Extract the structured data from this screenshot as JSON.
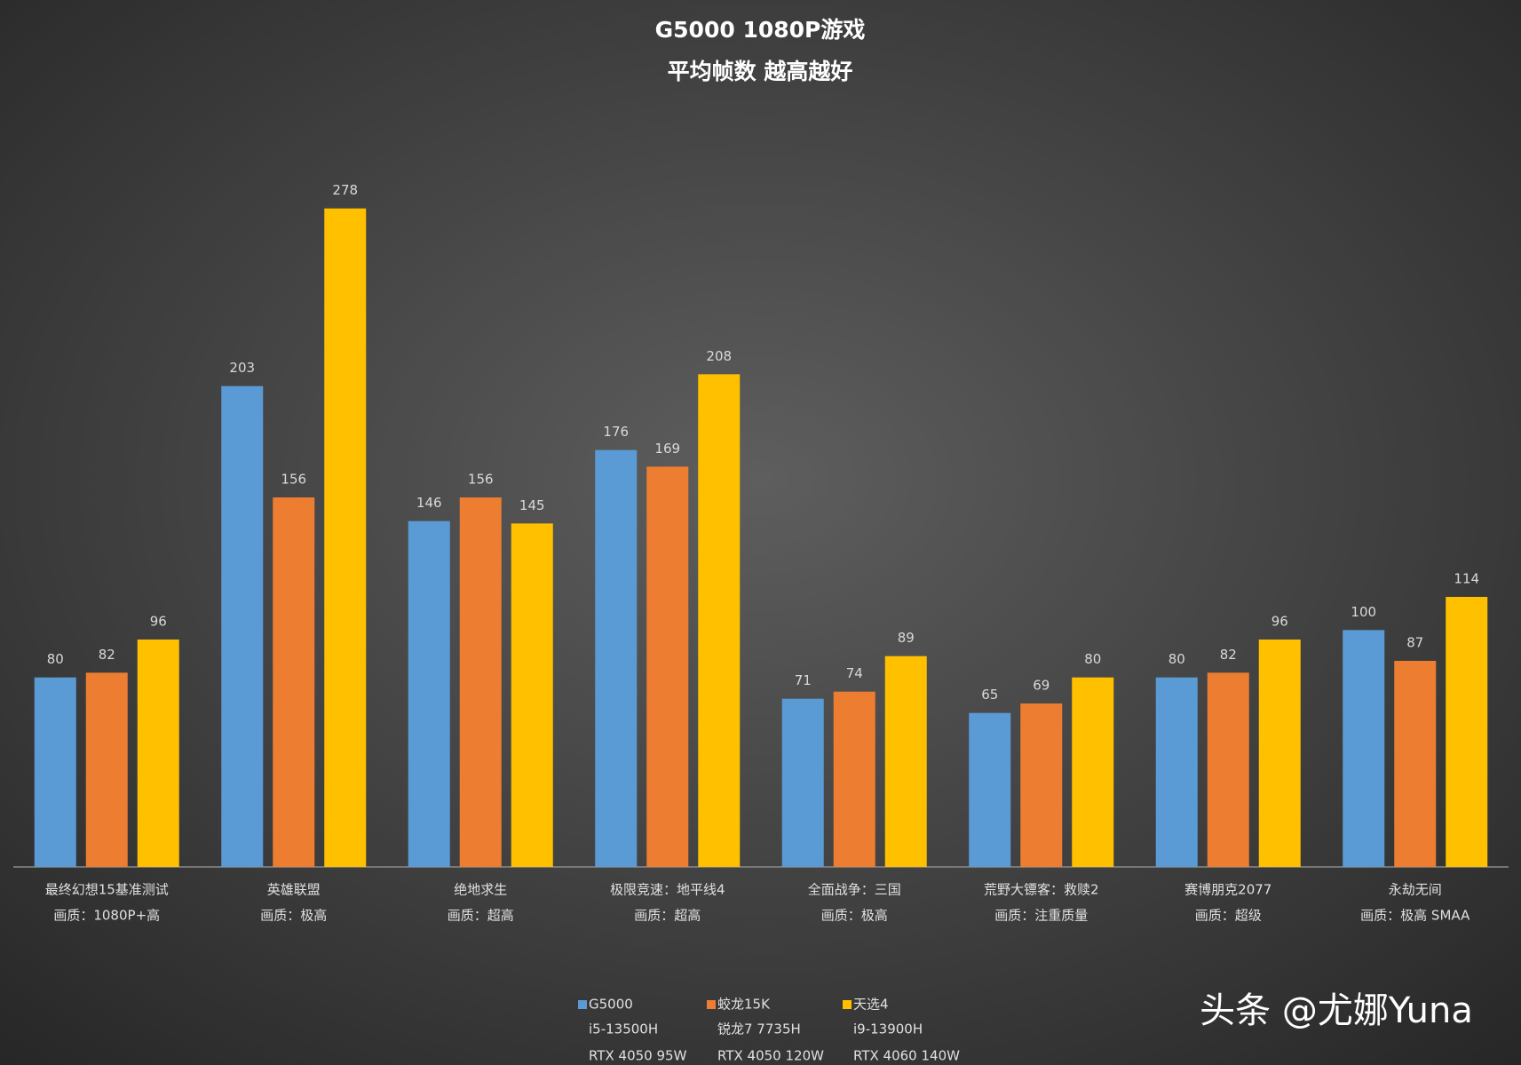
{
  "chart_data": {
    "type": "bar",
    "title": "G5000 1080P游戏",
    "subtitle": "平均帧数 越高越好",
    "categories": [
      "最终幻想15基准测试",
      "英雄联盟",
      "绝地求生",
      "极限竞速：地平线4",
      "全面战争：三国",
      "荒野大镖客：救赎2",
      "赛博朋克2077",
      "永劫无间"
    ],
    "category_notes": [
      "画质：1080P+高",
      "画质：极高",
      "画质：超高",
      "画质：超高",
      "画质：极高",
      "画质：注重质量",
      "画质：超级",
      "画质：极高 SMAA"
    ],
    "series": [
      {
        "name": "G5000",
        "details": [
          "i5-13500H",
          "RTX 4050 95W"
        ],
        "color": "#5b9bd5",
        "values": [
          80,
          203,
          146,
          176,
          71,
          65,
          80,
          100
        ]
      },
      {
        "name": "蛟龙15K",
        "details": [
          "锐龙7 7735H",
          "RTX 4050 120W"
        ],
        "color": "#ed7d31",
        "values": [
          82,
          156,
          156,
          169,
          74,
          69,
          82,
          87
        ]
      },
      {
        "name": "天选4",
        "details": [
          "i9-13900H",
          "RTX 4060 140W"
        ],
        "color": "#ffc000",
        "values": [
          96,
          278,
          145,
          208,
          89,
          80,
          96,
          114
        ]
      }
    ],
    "ylim": [
      0,
      300
    ],
    "watermark": "头条 @尤娜Yuna"
  }
}
